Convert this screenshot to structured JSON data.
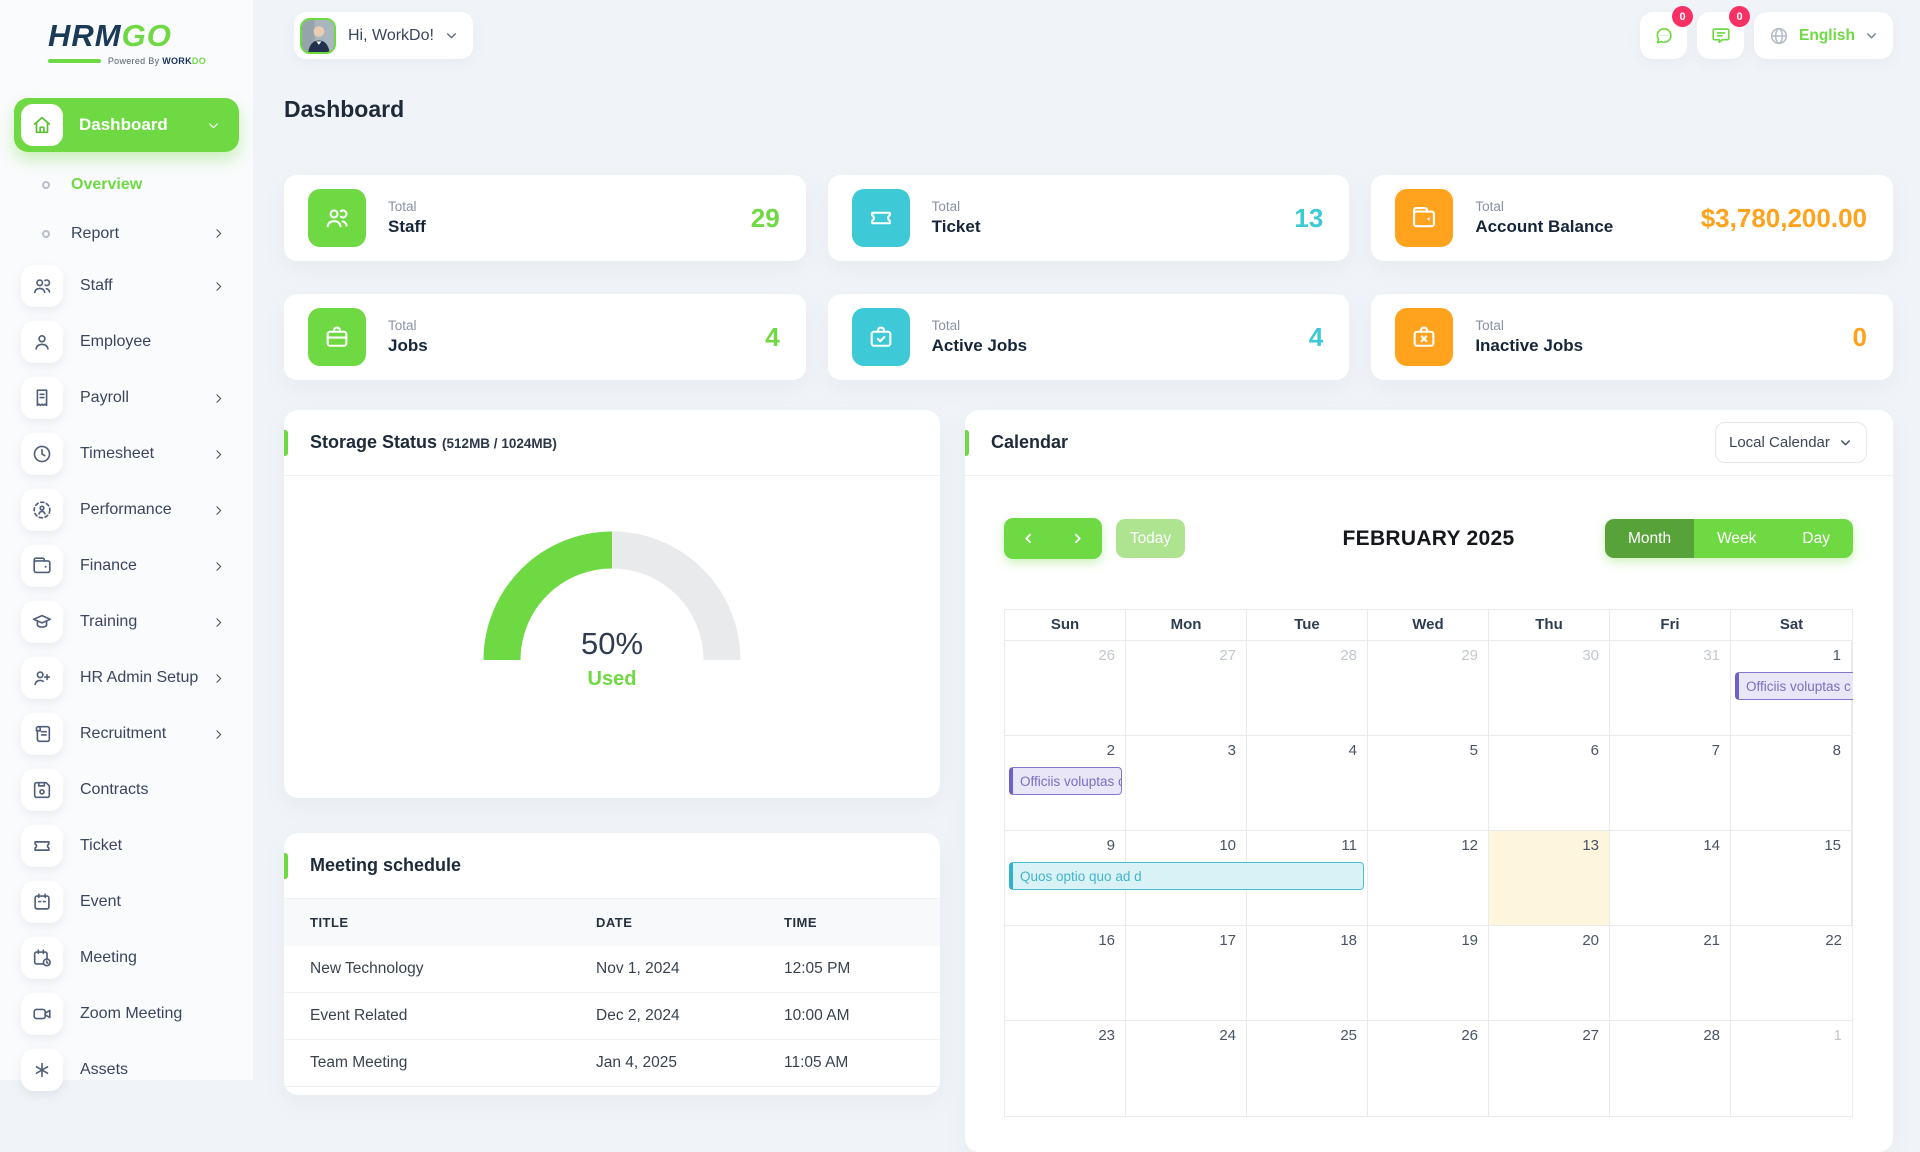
{
  "brand": {
    "name_primary": "HRM",
    "name_accent": "GO",
    "powered_prefix": "Powered By",
    "powered_primary": "WORK",
    "powered_accent": "DO"
  },
  "header": {
    "greeting": "Hi, WorkDo!",
    "chat_badge": "0",
    "notification_badge": "0",
    "language": "English"
  },
  "page_title": "Dashboard",
  "sidebar": {
    "items": [
      {
        "label": "Dashboard",
        "icon": "home",
        "variant": "pill",
        "chevron": "down",
        "active": true
      },
      {
        "label": "Overview",
        "variant": "sub",
        "active": true
      },
      {
        "label": "Report",
        "variant": "sub",
        "chevron": "right"
      },
      {
        "label": "Staff",
        "icon": "users",
        "chevron": "right"
      },
      {
        "label": "Employee",
        "icon": "user"
      },
      {
        "label": "Payroll",
        "icon": "receipt",
        "chevron": "right"
      },
      {
        "label": "Timesheet",
        "icon": "clock",
        "chevron": "right"
      },
      {
        "label": "Performance",
        "icon": "target",
        "chevron": "right"
      },
      {
        "label": "Finance",
        "icon": "wallet",
        "chevron": "right"
      },
      {
        "label": "Training",
        "icon": "graduation-cap",
        "chevron": "right"
      },
      {
        "label": "HR Admin Setup",
        "icon": "user-plus",
        "chevron": "right"
      },
      {
        "label": "Recruitment",
        "icon": "scroll",
        "chevron": "right"
      },
      {
        "label": "Contracts",
        "icon": "save"
      },
      {
        "label": "Ticket",
        "icon": "ticket"
      },
      {
        "label": "Event",
        "icon": "calendar"
      },
      {
        "label": "Meeting",
        "icon": "calendar-clock"
      },
      {
        "label": "Zoom Meeting",
        "icon": "video"
      },
      {
        "label": "Assets",
        "icon": "asterisk"
      }
    ]
  },
  "stats": [
    {
      "prefix": "Total",
      "label": "Staff",
      "value": "29",
      "color": "green",
      "icon": "users"
    },
    {
      "prefix": "Total",
      "label": "Ticket",
      "value": "13",
      "color": "cyan",
      "icon": "ticket"
    },
    {
      "prefix": "Total",
      "label": "Account Balance",
      "value": "$3,780,200.00",
      "color": "orange",
      "icon": "wallet"
    },
    {
      "prefix": "Total",
      "label": "Jobs",
      "value": "4",
      "color": "green",
      "icon": "briefcase"
    },
    {
      "prefix": "Total",
      "label": "Active Jobs",
      "value": "4",
      "color": "cyan",
      "icon": "briefcase-check"
    },
    {
      "prefix": "Total",
      "label": "Inactive Jobs",
      "value": "0",
      "color": "orange",
      "icon": "briefcase-x"
    }
  ],
  "storage": {
    "title": "Storage Status",
    "capacity": "(512MB / 1024MB)",
    "percent": 50,
    "percent_label": "50%",
    "used_label": "Used"
  },
  "calendar": {
    "card_title": "Calendar",
    "source_select": "Local Calendar",
    "today_label": "Today",
    "title": "FEBRUARY 2025",
    "views": [
      "Month",
      "Week",
      "Day"
    ],
    "active_view": "Month",
    "weekdays": [
      "Sun",
      "Mon",
      "Tue",
      "Wed",
      "Thu",
      "Fri",
      "Sat"
    ],
    "weeks": [
      {
        "days": [
          {
            "n": "26",
            "muted": true
          },
          {
            "n": "27",
            "muted": true
          },
          {
            "n": "28",
            "muted": true
          },
          {
            "n": "29",
            "muted": true
          },
          {
            "n": "30",
            "muted": true
          },
          {
            "n": "31",
            "muted": true
          },
          {
            "n": "1"
          }
        ],
        "events": [
          {
            "label": "Officiis voluptas c",
            "color": "purple",
            "col": 6,
            "span": 1,
            "clipped": true
          }
        ]
      },
      {
        "days": [
          {
            "n": "2"
          },
          {
            "n": "3"
          },
          {
            "n": "4"
          },
          {
            "n": "5"
          },
          {
            "n": "6"
          },
          {
            "n": "7"
          },
          {
            "n": "8"
          }
        ],
        "events": [
          {
            "label": "Officiis voluptas c",
            "color": "purple",
            "col": 0,
            "span": 1
          }
        ]
      },
      {
        "days": [
          {
            "n": "9"
          },
          {
            "n": "10"
          },
          {
            "n": "11"
          },
          {
            "n": "12"
          },
          {
            "n": "13",
            "today": true
          },
          {
            "n": "14"
          },
          {
            "n": "15"
          }
        ],
        "events": [
          {
            "label": "Quos optio quo ad d",
            "color": "cyan",
            "col": 0,
            "span": 3
          }
        ]
      },
      {
        "days": [
          {
            "n": "16"
          },
          {
            "n": "17"
          },
          {
            "n": "18"
          },
          {
            "n": "19"
          },
          {
            "n": "20"
          },
          {
            "n": "21"
          },
          {
            "n": "22"
          }
        ],
        "events": []
      },
      {
        "days": [
          {
            "n": "23"
          },
          {
            "n": "24"
          },
          {
            "n": "25"
          },
          {
            "n": "26"
          },
          {
            "n": "27"
          },
          {
            "n": "28"
          },
          {
            "n": "1",
            "muted": true
          }
        ],
        "events": []
      }
    ]
  },
  "meetings": {
    "title": "Meeting schedule",
    "columns": [
      "TITLE",
      "DATE",
      "TIME"
    ],
    "rows": [
      {
        "title": "New Technology",
        "date": "Nov 1, 2024",
        "time": "12:05 PM"
      },
      {
        "title": "Event Related",
        "date": "Dec 2, 2024",
        "time": "10:00 AM"
      },
      {
        "title": "Team Meeting",
        "date": "Jan 4, 2025",
        "time": "11:05 AM"
      }
    ]
  },
  "colors": {
    "green": "#6fd943",
    "dark_green": "#58a23a",
    "light_green": "#aee490",
    "cyan": "#3ec9d6",
    "orange": "#ffa21d",
    "badge": "#f73164",
    "purple_event": "#7a6fc0",
    "cyan_event": "#42b5cb",
    "today_cell": "#fdf6dc"
  }
}
